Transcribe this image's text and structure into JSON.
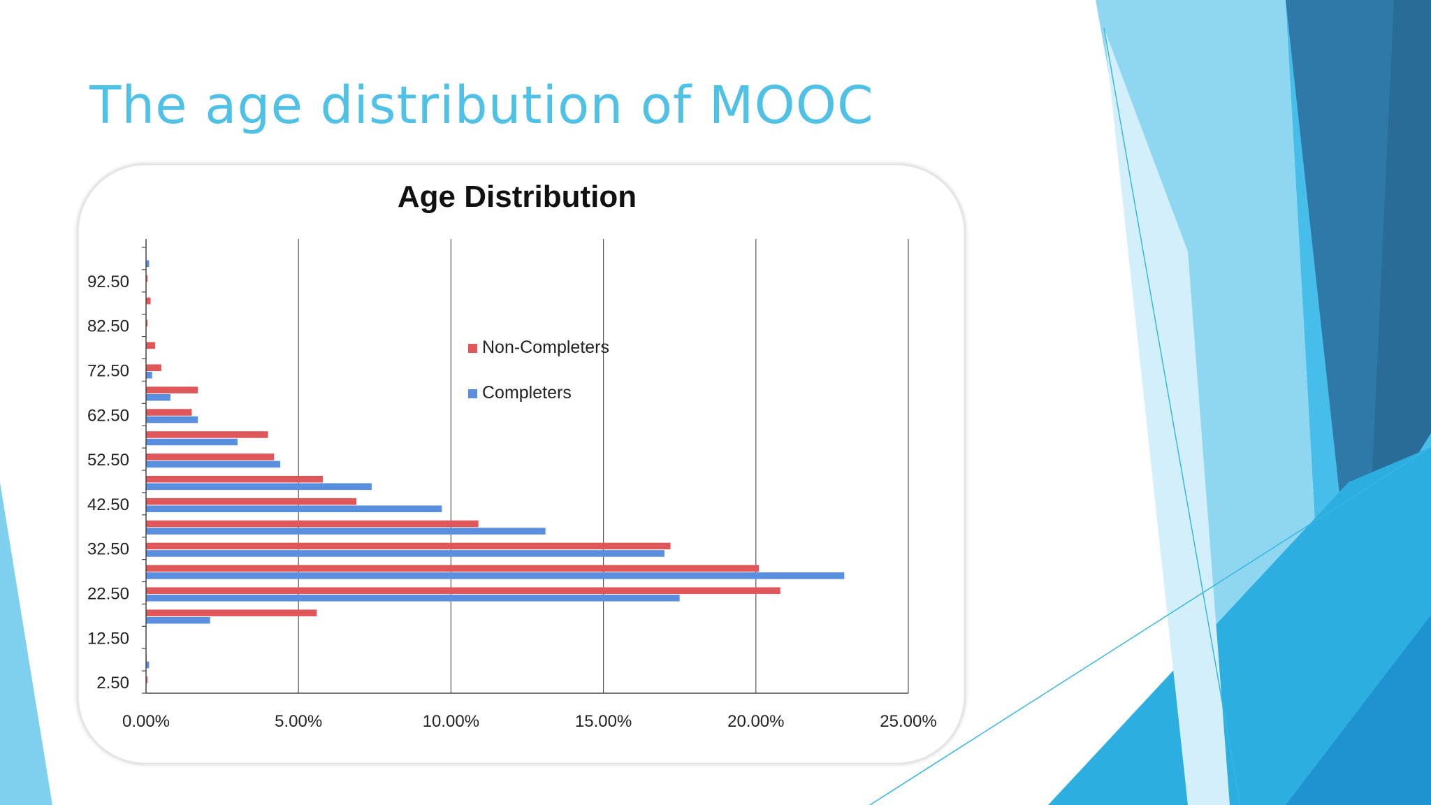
{
  "slide": {
    "title": "The age distribution of MOOC"
  },
  "colors": {
    "title": "#4fc1e6",
    "non_completers": "#e0575a",
    "completers": "#5a8fe0",
    "accent_light": "#7fd0ef",
    "accent_mid": "#2fb3e3",
    "accent_dark": "#2a6f9e"
  },
  "chart_data": {
    "type": "bar",
    "orientation": "horizontal",
    "title": "Age Distribution",
    "xlabel": "",
    "ylabel": "",
    "xlim": [
      0,
      25
    ],
    "x_ticks": [
      "0.00%",
      "5.00%",
      "10.00%",
      "15.00%",
      "20.00%",
      "25.00%"
    ],
    "y_tick_labels": [
      "2.50",
      "12.50",
      "22.50",
      "32.50",
      "42.50",
      "52.50",
      "62.50",
      "72.50",
      "82.50",
      "92.50"
    ],
    "categories": [
      "2.5",
      "7.5",
      "12.5",
      "17.5",
      "22.5",
      "27.5",
      "32.5",
      "37.5",
      "42.5",
      "47.5",
      "52.5",
      "57.5",
      "62.5",
      "67.5",
      "72.5",
      "77.5",
      "82.5",
      "87.5",
      "92.5",
      "97.5"
    ],
    "legend_position": "center",
    "grid": "vertical",
    "series": [
      {
        "name": "Non-Completers",
        "values": [
          0.05,
          0.02,
          0.0,
          5.6,
          20.8,
          20.1,
          17.2,
          10.9,
          6.9,
          5.8,
          4.2,
          4.0,
          1.5,
          1.7,
          0.5,
          0.3,
          0.05,
          0.15,
          0.05,
          0.0
        ]
      },
      {
        "name": "Completers",
        "values": [
          0.0,
          0.1,
          0.0,
          2.1,
          17.5,
          22.9,
          17.0,
          13.1,
          9.7,
          7.4,
          4.4,
          3.0,
          1.7,
          0.8,
          0.2,
          0.0,
          0.0,
          0.0,
          0.0,
          0.1
        ]
      }
    ]
  }
}
